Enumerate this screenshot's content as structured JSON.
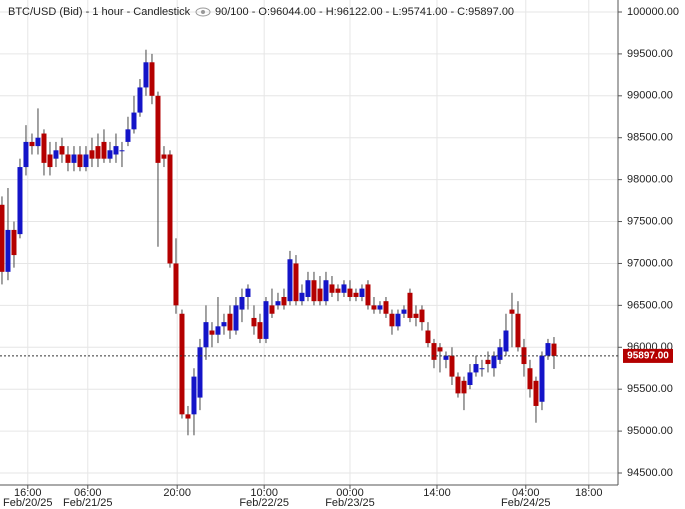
{
  "chart_data": {
    "type": "candlestick",
    "title": "BTC/USD (Bid) - 1 hour - Candlestick",
    "ohlc_info": "90/100 - O:96044.00 - H:96122.00 - L:95741.00 - C:95897.00",
    "up_color": "#1414c8",
    "down_color": "#b40000",
    "grid": true,
    "last_price": 95897,
    "last_price_label": "95897.00",
    "xlim": [
      -0.33,
      102.67
    ],
    "ylim": [
      94357,
      100143
    ],
    "xticks": [
      {
        "value": 4.3,
        "label": "16:00",
        "date": "Feb/20/25"
      },
      {
        "value": 14.3,
        "label": "06:00",
        "date": "Feb/21/25"
      },
      {
        "value": 29.2,
        "label": "20:00"
      },
      {
        "value": 43.7,
        "label": "10:00",
        "date": "Feb/22/25"
      },
      {
        "value": 58,
        "label": "00:00",
        "date": "Feb/23/25"
      },
      {
        "value": 72.5,
        "label": "14:00"
      },
      {
        "value": 87.3,
        "label": "04:00",
        "date": "Feb/24/25"
      },
      {
        "value": 97.8,
        "label": "18:00"
      }
    ],
    "yticks": [
      {
        "value": 94500,
        "label": "94500.00"
      },
      {
        "value": 95000,
        "label": "95000.00"
      },
      {
        "value": 95500,
        "label": "95500.00"
      },
      {
        "value": 96000,
        "label": "96000.00"
      },
      {
        "value": 96500,
        "label": "96500.00"
      },
      {
        "value": 97000,
        "label": "97000.00"
      },
      {
        "value": 97500,
        "label": "97500.00"
      },
      {
        "value": 98000,
        "label": "98000.00"
      },
      {
        "value": 98500,
        "label": "98500.00"
      },
      {
        "value": 99000,
        "label": "99000.00"
      },
      {
        "value": 99500,
        "label": "99500.00"
      },
      {
        "value": 100000,
        "label": "100000.00"
      }
    ],
    "x": [
      0,
      1,
      2,
      3,
      4,
      5,
      6,
      7,
      8,
      9,
      10,
      11,
      12,
      13,
      14,
      15,
      16,
      17,
      18,
      19,
      20,
      21,
      22,
      23,
      24,
      25,
      26,
      27,
      28,
      29,
      30,
      31,
      32,
      33,
      34,
      35,
      36,
      37,
      38,
      39,
      40,
      41,
      42,
      43,
      44,
      45,
      46,
      47,
      48,
      49,
      50,
      51,
      52,
      53,
      54,
      55,
      56,
      57,
      58,
      59,
      60,
      61,
      62,
      63,
      64,
      65,
      66,
      67,
      68,
      69,
      70,
      71,
      72,
      73,
      74,
      75,
      76,
      77,
      78,
      79,
      80,
      81,
      82,
      83,
      84,
      85,
      86,
      87,
      88,
      89,
      90,
      91,
      92
    ],
    "open": [
      97700,
      96900,
      97400,
      97350,
      98150,
      98450,
      98400,
      98550,
      98300,
      98250,
      98400,
      98300,
      98200,
      98300,
      98150,
      98350,
      98400,
      98450,
      98250,
      98300,
      98350,
      98450,
      98600,
      98800,
      99100,
      99400,
      99000,
      98300,
      98300,
      97000,
      96400,
      95200,
      95200,
      95400,
      96000,
      96200,
      96150,
      96250,
      96400,
      96200,
      96450,
      96600,
      96350,
      96300,
      96100,
      96500,
      96500,
      96600,
      96550,
      97000,
      96550,
      96600,
      96800,
      96700,
      96550,
      96750,
      96700,
      96650,
      96700,
      96650,
      96600,
      96750,
      96500,
      96450,
      96550,
      96400,
      96250,
      96400,
      96650,
      96400,
      96450,
      96200,
      96050,
      96000,
      95850,
      95900,
      95650,
      95600,
      95550,
      95700,
      95750,
      95850,
      95750,
      95850,
      95950,
      96450,
      96400,
      96000,
      95750,
      95600,
      95350,
      95900,
      96044
    ],
    "high": [
      97800,
      97900,
      97500,
      98250,
      98650,
      98550,
      98850,
      98600,
      98450,
      98450,
      98500,
      98400,
      98400,
      98400,
      98400,
      98500,
      98550,
      98600,
      98450,
      98550,
      98450,
      98750,
      99000,
      99200,
      99550,
      99500,
      99050,
      98400,
      98350,
      97300,
      96450,
      95300,
      95750,
      96100,
      96500,
      96300,
      96600,
      96400,
      96500,
      96600,
      96700,
      96750,
      96500,
      96400,
      96600,
      96700,
      96650,
      96700,
      97150,
      97100,
      96750,
      96900,
      96900,
      96850,
      96900,
      96850,
      96750,
      96800,
      96800,
      96700,
      96750,
      96800,
      96600,
      96550,
      96600,
      96450,
      96450,
      96500,
      96700,
      96500,
      96500,
      96300,
      96100,
      96050,
      95950,
      96000,
      95700,
      95650,
      95800,
      95900,
      95850,
      95950,
      95950,
      96100,
      96400,
      96650,
      96550,
      96100,
      95850,
      95650,
      95950,
      96100,
      96122
    ],
    "low": [
      96750,
      96800,
      96950,
      97300,
      98050,
      98300,
      98300,
      98050,
      98050,
      98150,
      98200,
      98100,
      98100,
      98100,
      98100,
      98150,
      98150,
      98200,
      98200,
      98200,
      98150,
      98400,
      98550,
      98750,
      99000,
      98900,
      97200,
      98150,
      96950,
      96400,
      95150,
      94950,
      94950,
      95250,
      95850,
      96000,
      96050,
      96150,
      96100,
      96150,
      96300,
      96450,
      96150,
      96050,
      96050,
      96350,
      96450,
      96450,
      96500,
      96500,
      96500,
      96550,
      96500,
      96500,
      96500,
      96600,
      96550,
      96600,
      96550,
      96550,
      96550,
      96450,
      96400,
      96400,
      96350,
      96150,
      96200,
      96350,
      96300,
      96250,
      96200,
      96000,
      95750,
      95700,
      95750,
      95550,
      95400,
      95250,
      95500,
      95650,
      95650,
      95700,
      95650,
      95800,
      95900,
      96000,
      95950,
      95650,
      95400,
      95100,
      95250,
      95850,
      95741
    ],
    "close": [
      96900,
      97400,
      97100,
      98150,
      98450,
      98400,
      98500,
      98200,
      98150,
      98350,
      98300,
      98200,
      98300,
      98150,
      98300,
      98250,
      98250,
      98250,
      98350,
      98400,
      98350,
      98600,
      98800,
      99100,
      99400,
      99000,
      98200,
      98250,
      97000,
      96500,
      95200,
      95150,
      95650,
      96000,
      96300,
      96150,
      96250,
      96300,
      96200,
      96500,
      96600,
      96700,
      96250,
      96100,
      96550,
      96400,
      96550,
      96500,
      97050,
      96550,
      96650,
      96800,
      96550,
      96550,
      96800,
      96650,
      96650,
      96750,
      96600,
      96600,
      96700,
      96500,
      96450,
      96500,
      96400,
      96250,
      96400,
      96450,
      96350,
      96350,
      96300,
      96050,
      95850,
      95950,
      95900,
      95650,
      95450,
      95450,
      95700,
      95800,
      95750,
      95800,
      95900,
      96000,
      96200,
      96400,
      96000,
      95800,
      95500,
      95300,
      95900,
      96050,
      95897
    ]
  }
}
